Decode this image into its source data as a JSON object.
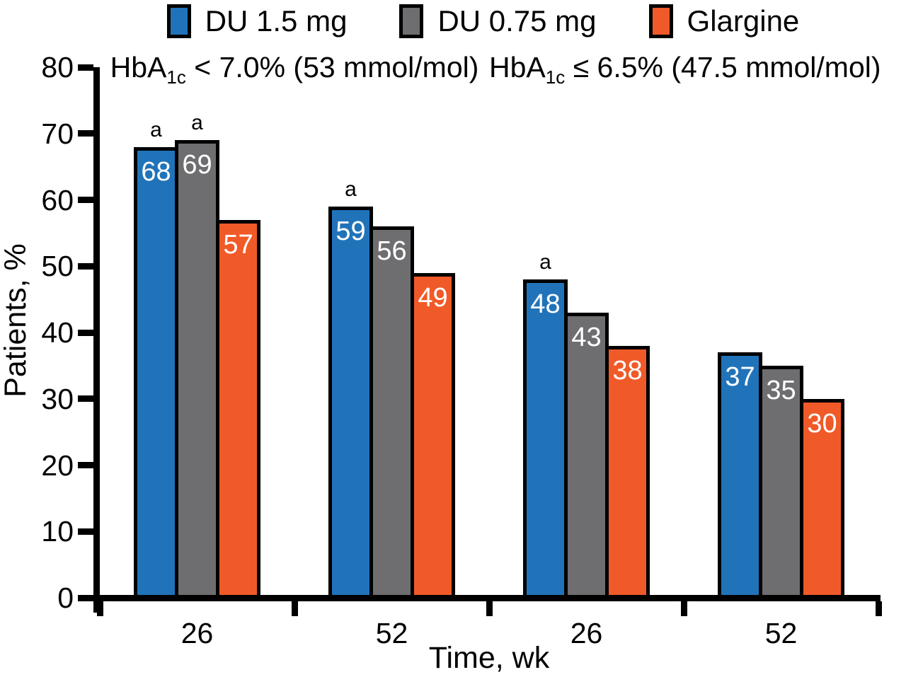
{
  "figure": {
    "background": "#ffffff",
    "axis_color": "#000000",
    "bar_value_text_color": "#ffffff"
  },
  "legend": {
    "position": "top",
    "items": [
      {
        "label": "DU 1.5 mg",
        "color": "#2173B9"
      },
      {
        "label": "DU 0.75 mg",
        "color": "#6E6E70"
      },
      {
        "label": "Glargine",
        "color": "#F05A28"
      }
    ]
  },
  "panel_titles": [
    {
      "prefix": "HbA",
      "sub": "1c",
      "rest": " < 7.0% (53 mmol/mol)"
    },
    {
      "prefix": "HbA",
      "sub": "1c",
      "rest": " ≤ 6.5% (47.5 mmol/mol)"
    }
  ],
  "chart_data": {
    "type": "bar",
    "title": "",
    "xlabel": "Time, wk",
    "ylabel": "Patients, %",
    "ylim": [
      0,
      80
    ],
    "yticks": [
      0,
      10,
      20,
      30,
      40,
      50,
      60,
      70,
      80
    ],
    "grid": false,
    "legend_position": "top",
    "categories": [
      "26",
      "52",
      "26",
      "52"
    ],
    "panel_labels": [
      "HbA1c < 7.0% (53 mmol/mol)",
      "HbA1c ≤ 6.5% (47.5 mmol/mol)"
    ],
    "panel_grouping": "panels 1-2 of x categories under first title, panels 3-4 under second title",
    "series": [
      {
        "name": "DU 1.5 mg",
        "color": "#2173B9",
        "values": [
          68,
          59,
          48,
          37
        ],
        "annotations": [
          "a",
          "a",
          "a",
          ""
        ]
      },
      {
        "name": "DU 0.75 mg",
        "color": "#6E6E70",
        "values": [
          69,
          56,
          43,
          35
        ],
        "annotations": [
          "a",
          "",
          "",
          ""
        ]
      },
      {
        "name": "Glargine",
        "color": "#F05A28",
        "values": [
          57,
          49,
          38,
          30
        ],
        "annotations": [
          "",
          "",
          "",
          ""
        ]
      }
    ]
  }
}
